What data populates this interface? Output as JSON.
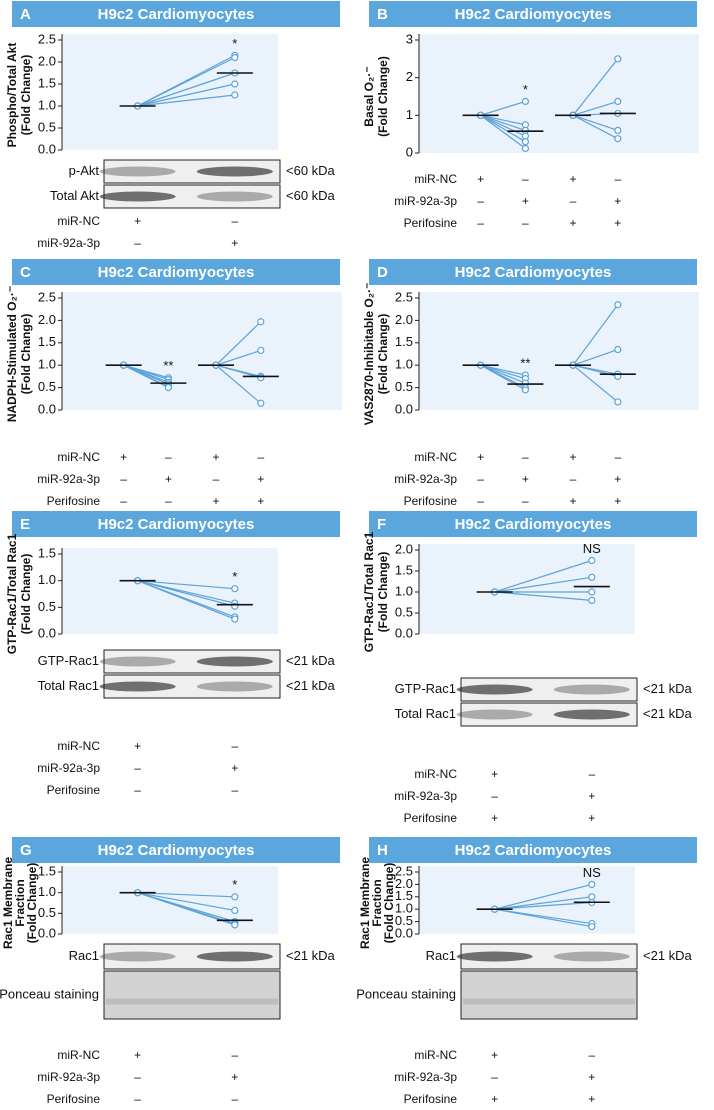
{
  "chart_data": [
    {
      "type": "paired",
      "letter": "A",
      "title": "H9c2 Cardiomyocytes",
      "ylabel": [
        "Phospho/Total Akt",
        "(Fold Change)"
      ],
      "ylim": [
        0,
        2.5
      ],
      "yticks": [
        {
          "value": 0,
          "label": "0.0"
        },
        0.5,
        {
          "value": 1,
          "label": "1.0"
        },
        1.5,
        {
          "value": 2,
          "label": "2.0"
        },
        2.5
      ],
      "categories": [
        null,
        null
      ],
      "color": "#5ba3d9",
      "replicates": [
        {
          "values": [
            1,
            2.15
          ]
        },
        {
          "values": [
            1,
            2.1
          ]
        },
        {
          "values": [
            1,
            1.75
          ]
        },
        {
          "values": [
            1,
            1.5
          ]
        },
        {
          "values": [
            1,
            1.25
          ]
        }
      ],
      "means": [
        1,
        1.75
      ],
      "annotations": [
        null,
        "*"
      ],
      "blots": [
        {
          "label": "p-Akt",
          "size": "<60 kDa"
        },
        {
          "label": "Total Akt",
          "size": "<60 kDa"
        }
      ],
      "conditions": [
        {
          "label": "miR-NC",
          "marks": [
            "+",
            "–"
          ]
        },
        {
          "label": "miR-92a-3p",
          "marks": [
            "–",
            "+"
          ]
        }
      ]
    },
    {
      "type": "paired",
      "letter": "B",
      "title": "H9c2 Cardiomyocytes",
      "ylabel": [
        "Basal O₂·⁻",
        "(Fold Change)"
      ],
      "ylim": [
        0,
        3
      ],
      "yticks": [
        0,
        1,
        2,
        3
      ],
      "categories": [
        null,
        null,
        null,
        null
      ],
      "color": "#5ba3d9",
      "replicates": [
        {
          "values": [
            1,
            1.37,
            1,
            2.5
          ]
        },
        {
          "values": [
            1,
            0.75,
            1,
            1.37
          ]
        },
        {
          "values": [
            1,
            0.6,
            1,
            1.05
          ]
        },
        {
          "values": [
            1,
            0.45,
            1,
            0.6
          ]
        },
        {
          "values": [
            1,
            0.3,
            1,
            0.38
          ]
        },
        {
          "values": [
            1,
            0.12,
            null,
            null
          ]
        }
      ],
      "means": [
        1,
        0.58,
        1,
        1.05
      ],
      "annotations": [
        null,
        "*",
        null,
        null
      ],
      "blots": [],
      "conditions": [
        {
          "label": "miR-NC",
          "marks": [
            "+",
            "–",
            "+",
            "–"
          ]
        },
        {
          "label": "miR-92a-3p",
          "marks": [
            "–",
            "+",
            "–",
            "+"
          ]
        },
        {
          "label": "Perifosine",
          "marks": [
            "–",
            "–",
            "+",
            "+"
          ]
        }
      ]
    },
    {
      "type": "paired",
      "letter": "C",
      "title": "H9c2 Cardiomyocytes",
      "ylabel": [
        "NADPH-Stimulated O₂·⁻",
        "(Fold Change)"
      ],
      "ylim": [
        0,
        2.5
      ],
      "yticks": [
        {
          "value": 0,
          "label": "0.0"
        },
        0.5,
        {
          "value": 1,
          "label": "1.0"
        },
        1.5,
        {
          "value": 2,
          "label": "2.0"
        },
        2.5
      ],
      "categories": [
        null,
        null,
        null,
        null
      ],
      "color": "#5ba3d9",
      "replicates": [
        {
          "values": [
            1,
            0.72,
            1,
            1.97
          ]
        },
        {
          "values": [
            1,
            0.68,
            1,
            1.33
          ]
        },
        {
          "values": [
            1,
            0.62,
            1,
            0.75
          ]
        },
        {
          "values": [
            1,
            0.58,
            1,
            0.72
          ]
        },
        {
          "values": [
            1,
            0.52,
            1,
            0.15
          ]
        },
        {
          "values": [
            1,
            0.5,
            null,
            null
          ]
        }
      ],
      "means": [
        1,
        0.6,
        1,
        0.75
      ],
      "annotations": [
        null,
        "**",
        null,
        null
      ],
      "blots": [],
      "conditions": [
        {
          "label": "miR-NC",
          "marks": [
            "+",
            "–",
            "+",
            "–"
          ]
        },
        {
          "label": "miR-92a-3p",
          "marks": [
            "–",
            "+",
            "–",
            "+"
          ]
        },
        {
          "label": "Perifosine",
          "marks": [
            "–",
            "–",
            "+",
            "+"
          ]
        }
      ]
    },
    {
      "type": "paired",
      "letter": "D",
      "title": "H9c2 Cardiomyocytes",
      "ylabel": [
        "VAS2870-Inhibitable O₂·⁻",
        "(Fold Change)"
      ],
      "ylim": [
        0,
        2.5
      ],
      "yticks": [
        {
          "value": 0,
          "label": "0.0"
        },
        0.5,
        {
          "value": 1,
          "label": "1.0"
        },
        1.5,
        {
          "value": 2,
          "label": "2.0"
        },
        2.5
      ],
      "categories": [
        null,
        null,
        null,
        null
      ],
      "color": "#5ba3d9",
      "replicates": [
        {
          "values": [
            1,
            0.78,
            1,
            2.35
          ]
        },
        {
          "values": [
            1,
            0.7,
            1,
            1.35
          ]
        },
        {
          "values": [
            1,
            0.6,
            1,
            0.8
          ]
        },
        {
          "values": [
            1,
            0.5,
            1,
            0.75
          ]
        },
        {
          "values": [
            1,
            0.45,
            1,
            0.18
          ]
        }
      ],
      "means": [
        1,
        0.58,
        1,
        0.8
      ],
      "annotations": [
        null,
        "**",
        null,
        null
      ],
      "blots": [],
      "conditions": [
        {
          "label": "miR-NC",
          "marks": [
            "+",
            "–",
            "+",
            "–"
          ]
        },
        {
          "label": "miR-92a-3p",
          "marks": [
            "–",
            "+",
            "–",
            "+"
          ]
        },
        {
          "label": "Perifosine",
          "marks": [
            "–",
            "–",
            "+",
            "+"
          ]
        }
      ]
    },
    {
      "type": "paired",
      "letter": "E",
      "title": "H9c2 Cardiomyocytes",
      "ylabel": [
        "GTP-Rac1/Total Rac1",
        "(Fold Change)"
      ],
      "ylim": [
        0,
        1.5
      ],
      "yticks": [
        {
          "value": 0,
          "label": "0.0"
        },
        0.5,
        {
          "value": 1,
          "label": "1.0"
        },
        1.5
      ],
      "categories": [
        null,
        null
      ],
      "color": "#5ba3d9",
      "replicates": [
        {
          "values": [
            1,
            0.85
          ]
        },
        {
          "values": [
            1,
            0.58
          ]
        },
        {
          "values": [
            1,
            0.52
          ]
        },
        {
          "values": [
            1,
            0.32
          ]
        },
        {
          "values": [
            1,
            0.28
          ]
        }
      ],
      "means": [
        1,
        0.55
      ],
      "annotations": [
        null,
        "*"
      ],
      "blots": [
        {
          "label": "GTP-Rac1",
          "size": "<21 kDa"
        },
        {
          "label": "Total Rac1",
          "size": "<21 kDa"
        }
      ],
      "conditions": [
        {
          "label": "miR-NC",
          "marks": [
            "+",
            "–"
          ]
        },
        {
          "label": "miR-92a-3p",
          "marks": [
            "–",
            "+"
          ]
        },
        {
          "label": "Perifosine",
          "marks": [
            "–",
            "–"
          ]
        }
      ]
    },
    {
      "type": "paired",
      "letter": "F",
      "title": "H9c2 Cardiomyocytes",
      "ylabel": [
        "GTP-Rac1/Total Rac1",
        "(Fold Change)"
      ],
      "ylim": [
        0,
        2
      ],
      "yticks": [
        {
          "value": 0,
          "label": "0.0"
        },
        0.5,
        {
          "value": 1,
          "label": "1.0"
        },
        1.5,
        {
          "value": 2,
          "label": "2.0"
        }
      ],
      "categories": [
        null,
        null
      ],
      "color": "#5ba3d9",
      "replicates": [
        {
          "values": [
            1,
            1.75
          ]
        },
        {
          "values": [
            1,
            1.35
          ]
        },
        {
          "values": [
            1,
            1.0
          ]
        },
        {
          "values": [
            1,
            0.8
          ]
        }
      ],
      "means": [
        1,
        1.13
      ],
      "annotations": [
        null,
        "NS"
      ],
      "blots": [
        {
          "label": "GTP-Rac1",
          "size": "<21 kDa"
        },
        {
          "label": "Total Rac1",
          "size": "<21 kDa"
        }
      ],
      "conditions": [
        {
          "label": "miR-NC",
          "marks": [
            "+",
            "–"
          ]
        },
        {
          "label": "miR-92a-3p",
          "marks": [
            "–",
            "+"
          ]
        },
        {
          "label": "Perifosine",
          "marks": [
            "+",
            "+"
          ]
        }
      ]
    },
    {
      "type": "paired",
      "letter": "G",
      "title": "H9c2 Cardiomyocytes",
      "ylabel": [
        "Rac1 Membrane",
        "Fraction",
        "(Fold Change)"
      ],
      "ylim": [
        0,
        1.5
      ],
      "yticks": [
        {
          "value": 0,
          "label": "0.0"
        },
        0.5,
        {
          "value": 1,
          "label": "1.0"
        },
        1.5
      ],
      "categories": [
        null,
        null
      ],
      "color": "#5ba3d9",
      "replicates": [
        {
          "values": [
            1,
            0.9
          ]
        },
        {
          "values": [
            1,
            0.57
          ]
        },
        {
          "values": [
            1,
            0.3
          ]
        },
        {
          "values": [
            1,
            0.25
          ]
        },
        {
          "values": [
            1,
            0.22
          ]
        }
      ],
      "means": [
        1,
        0.33
      ],
      "annotations": [
        null,
        "*"
      ],
      "blots": [
        {
          "label": "Rac1",
          "size": "<21 kDa"
        },
        {
          "label": "Ponceau staining"
        }
      ],
      "conditions": [
        {
          "label": "miR-NC",
          "marks": [
            "+",
            "–"
          ]
        },
        {
          "label": "miR-92a-3p",
          "marks": [
            "–",
            "+"
          ]
        },
        {
          "label": "Perifosine",
          "marks": [
            "–",
            "–"
          ]
        }
      ]
    },
    {
      "type": "paired",
      "letter": "H",
      "title": "H9c2 Cardiomyocytes",
      "ylabel": [
        "Rac1 Membrane",
        "Fraction",
        "(Fold Change)"
      ],
      "ylim": [
        0,
        2.5
      ],
      "yticks": [
        {
          "value": 0,
          "label": "0.0"
        },
        0.5,
        {
          "value": 1,
          "label": "1.0"
        },
        1.5,
        {
          "value": 2,
          "label": "2.0"
        },
        2.5
      ],
      "categories": [
        null,
        null
      ],
      "color": "#5ba3d9",
      "replicates": [
        {
          "values": [
            1,
            2.0
          ]
        },
        {
          "values": [
            1,
            1.5
          ]
        },
        {
          "values": [
            1,
            1.27
          ]
        },
        {
          "values": [
            1,
            0.42
          ]
        },
        {
          "values": [
            1,
            0.3
          ]
        }
      ],
      "means": [
        1,
        1.28
      ],
      "annotations": [
        null,
        "NS"
      ],
      "blots": [
        {
          "label": "Rac1",
          "size": "<21 kDa"
        },
        {
          "label": "Ponceau staining"
        }
      ],
      "conditions": [
        {
          "label": "miR-NC",
          "marks": [
            "+",
            "–"
          ]
        },
        {
          "label": "miR-92a-3p",
          "marks": [
            "–",
            "+"
          ]
        },
        {
          "label": "Perifosine",
          "marks": [
            "+",
            "+"
          ]
        }
      ]
    }
  ]
}
